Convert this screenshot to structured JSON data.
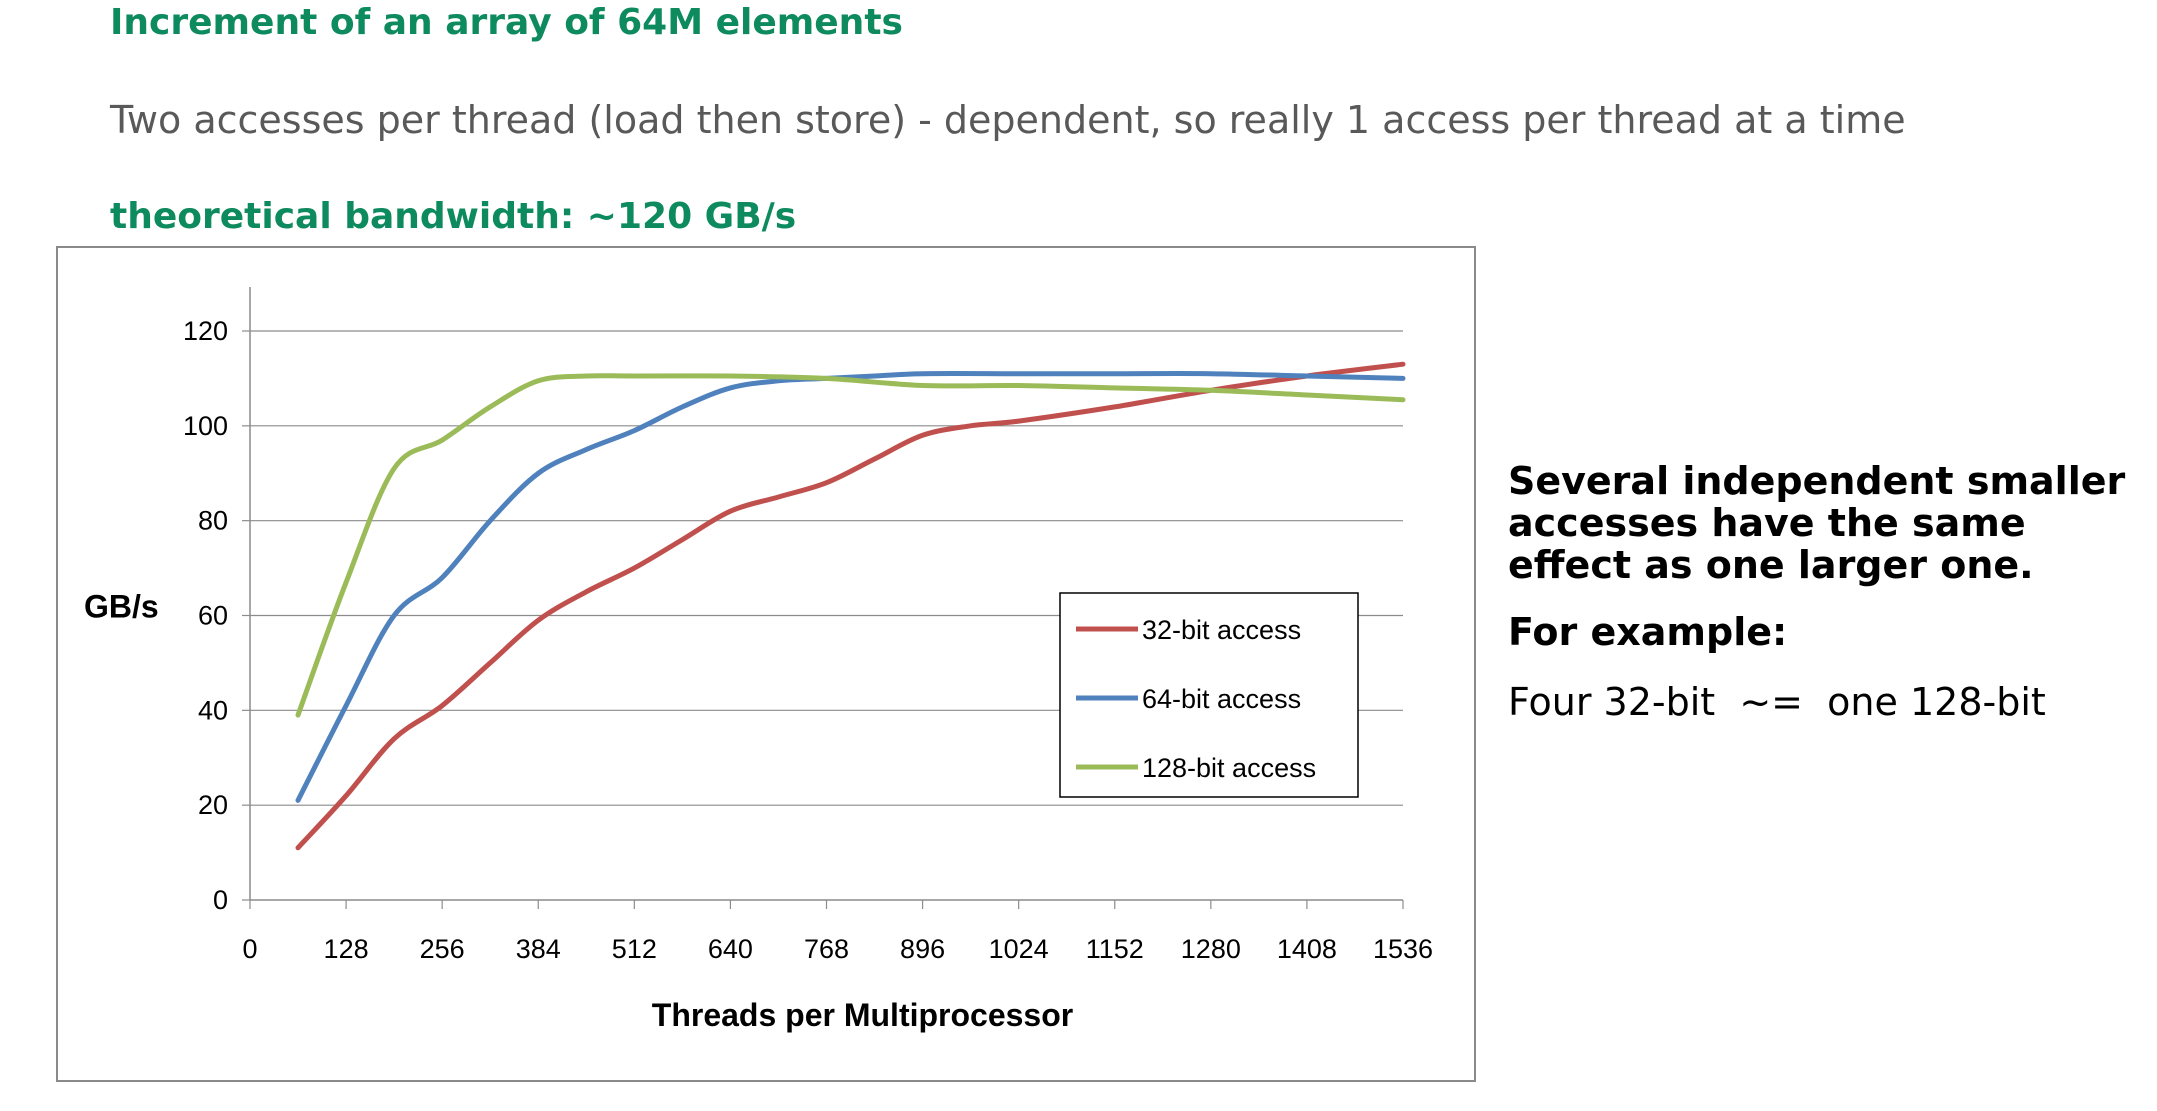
{
  "heading": "Increment of an array of 64M elements",
  "subtitle": "Two accesses per thread (load then store) - dependent, so really 1 access per thread at a time",
  "bandwidth_note": "theoretical bandwidth: ~120 GB/s",
  "side_text": {
    "line1": "Several independent smaller accesses have the same effect as one larger one.",
    "line2": "For example:",
    "line3": "Four 32-bit  ~=  one 128-bit"
  },
  "chart_data": {
    "type": "line",
    "title": "",
    "xlabel": "Threads per Multiprocessor",
    "ylabel": "GB/s",
    "xlim": [
      0,
      1536
    ],
    "ylim": [
      0,
      120
    ],
    "xticks": [
      0,
      128,
      256,
      384,
      512,
      640,
      768,
      896,
      1024,
      1152,
      1280,
      1408,
      1536
    ],
    "yticks": [
      0,
      20,
      40,
      60,
      80,
      100,
      120
    ],
    "grid": "horizontal",
    "legend_position": "right-center",
    "series": [
      {
        "name": "32-bit access",
        "color": "#c0504d",
        "points": [
          [
            64,
            11
          ],
          [
            128,
            22
          ],
          [
            192,
            34
          ],
          [
            256,
            41
          ],
          [
            320,
            50
          ],
          [
            384,
            59
          ],
          [
            448,
            65
          ],
          [
            512,
            70
          ],
          [
            576,
            76
          ],
          [
            640,
            82
          ],
          [
            704,
            85
          ],
          [
            768,
            88
          ],
          [
            832,
            93
          ],
          [
            896,
            98
          ],
          [
            960,
            100
          ],
          [
            1024,
            101
          ],
          [
            1152,
            104
          ],
          [
            1280,
            107.5
          ],
          [
            1408,
            110.5
          ],
          [
            1536,
            113
          ]
        ]
      },
      {
        "name": "64-bit access",
        "color": "#4f81bd",
        "points": [
          [
            64,
            21
          ],
          [
            128,
            41
          ],
          [
            192,
            60
          ],
          [
            256,
            68
          ],
          [
            320,
            80
          ],
          [
            384,
            90
          ],
          [
            448,
            95
          ],
          [
            512,
            99
          ],
          [
            576,
            104
          ],
          [
            640,
            108
          ],
          [
            704,
            109.5
          ],
          [
            768,
            110
          ],
          [
            832,
            110.5
          ],
          [
            896,
            111
          ],
          [
            1024,
            111
          ],
          [
            1152,
            111
          ],
          [
            1280,
            111
          ],
          [
            1408,
            110.5
          ],
          [
            1536,
            110
          ]
        ]
      },
      {
        "name": "128-bit access",
        "color": "#9bbb59",
        "points": [
          [
            64,
            39
          ],
          [
            128,
            67
          ],
          [
            192,
            91
          ],
          [
            256,
            97
          ],
          [
            320,
            104
          ],
          [
            384,
            109.5
          ],
          [
            448,
            110.5
          ],
          [
            512,
            110.5
          ],
          [
            640,
            110.5
          ],
          [
            768,
            110
          ],
          [
            896,
            108.5
          ],
          [
            1024,
            108.5
          ],
          [
            1152,
            108
          ],
          [
            1280,
            107.5
          ],
          [
            1408,
            106.5
          ],
          [
            1536,
            105.5
          ]
        ]
      }
    ]
  }
}
